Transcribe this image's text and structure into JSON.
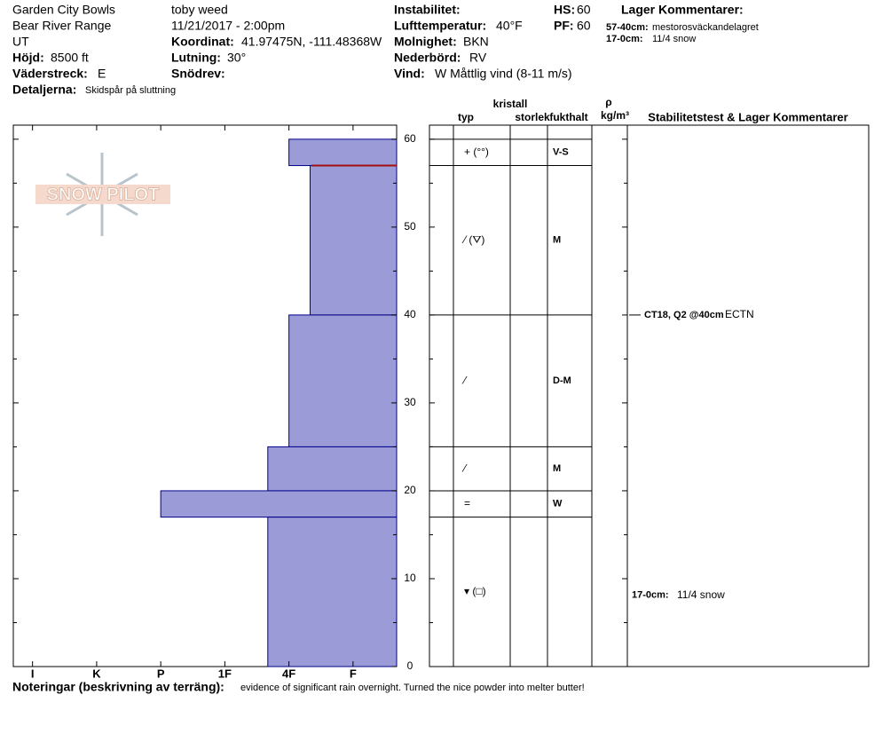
{
  "header": {
    "location": "Garden City Bowls",
    "range": "Bear River Range",
    "state": "UT",
    "elevation_label": "Höjd:",
    "elevation": "8500 ft",
    "aspect_label": "Väderstreck:",
    "aspect": "E",
    "details_label": "Detaljerna:",
    "details": "Skidspår på sluttning",
    "observer": "toby weed",
    "datetime": "11/21/2017 - 2:00pm",
    "coord_label": "Koordinat:",
    "coord": "41.97475N, -111.48368W",
    "slope_label": "Lutning:",
    "slope": "30°",
    "snowdrift_label": "Snödrev:",
    "instability_label": "Instabilitet:",
    "airtemp_label": "Lufttemperatur:",
    "airtemp": "40°F",
    "cloud_label": "Molnighet:",
    "cloud": "BKN",
    "precip_label": "Nederbörd:",
    "precip": "RV",
    "wind_label": "Vind:",
    "wind": "W Måttlig vind (8-11 m/s)",
    "hs_label": "HS:",
    "hs": "60",
    "pf_label": "PF:",
    "pf": "60",
    "layer_comments_title": "Lager Kommentarer:",
    "layer_comments": [
      {
        "depth": "57-40cm:",
        "text": "mestorosväckandelagret"
      },
      {
        "depth": "17-0cm:",
        "text": "11/4 snow"
      }
    ]
  },
  "logo": "SNOW PILOT",
  "notes": {
    "label": "Noteringar (beskrivning av terräng):",
    "text": "evidence of significant rain overnight.  Turned the nice powder into melter butter!"
  },
  "chart_data": {
    "type": "bar",
    "color": "#9b9bd7",
    "xlim": [
      6.3,
      0.32
    ],
    "xticks": [
      {
        "value": 6,
        "label": "I"
      },
      {
        "value": 5,
        "label": "K"
      },
      {
        "value": 4,
        "label": "P"
      },
      {
        "value": 3,
        "label": "1F"
      },
      {
        "value": 2,
        "label": "4F"
      },
      {
        "value": 1,
        "label": "F"
      }
    ],
    "ylim": [
      0,
      61.6
    ],
    "yticks": [
      0,
      10,
      20,
      30,
      40,
      50,
      60
    ],
    "columns": {
      "crystal": "kristall",
      "type": "typ",
      "size": "storlek",
      "moisture": "fukthalt",
      "density_symbol": "ρ",
      "density_unit": "kg/m³",
      "stability": "Stabilitetstest & Lager Kommentarer"
    },
    "layers": {
      "top": [
        60,
        57,
        40,
        25,
        20,
        17
      ],
      "bottom": [
        57,
        40,
        25,
        20,
        17,
        0
      ],
      "hardness": [
        2,
        1.67,
        2,
        2.33,
        4,
        2.33
      ],
      "grain": [
        "+ (°°)",
        "⁄ (⛛)",
        "⁄",
        "⁄",
        "=",
        "▾ (□)"
      ],
      "moisture": [
        "V-S",
        "M",
        "D-M",
        "M",
        "W",
        null
      ]
    },
    "tests": [
      {
        "depth": 40,
        "label": "CT18, Q2 @40cm",
        "result": "ECTN"
      }
    ]
  }
}
